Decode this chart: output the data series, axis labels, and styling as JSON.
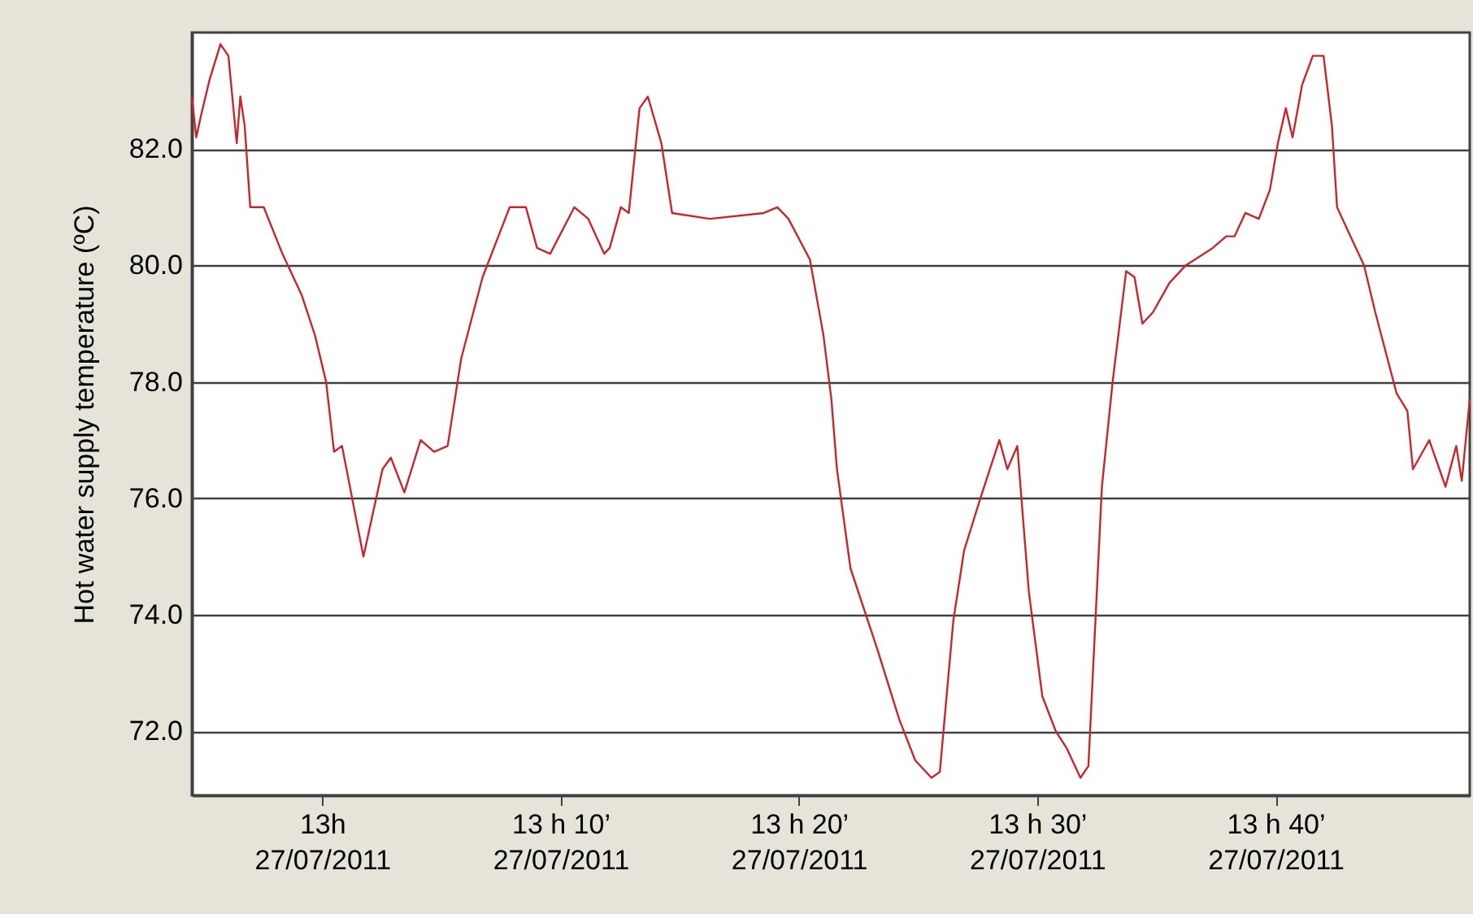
{
  "chart_data": {
    "type": "line",
    "ylabel": "Hot water supply temperature (ºC)",
    "x": [
      "2011-07-27T12:54:32",
      "2011-07-27T12:54:43",
      "2011-07-27T12:54:56",
      "2011-07-27T12:55:17",
      "2011-07-27T12:55:44",
      "2011-07-27T12:56:04",
      "2011-07-27T12:56:25",
      "2011-07-27T12:56:34",
      "2011-07-27T12:56:45",
      "2011-07-27T12:56:59",
      "2011-07-27T12:57:33",
      "2011-07-27T12:58:20",
      "2011-07-27T12:59:08",
      "2011-07-27T12:59:42",
      "2011-07-27T13:00:10",
      "2011-07-27T13:00:30",
      "2011-07-27T13:00:50",
      "2011-07-27T13:01:44",
      "2011-07-27T13:02:32",
      "2011-07-27T13:02:53",
      "2011-07-27T13:03:27",
      "2011-07-27T13:04:08",
      "2011-07-27T13:04:42",
      "2011-07-27T13:05:16",
      "2011-07-27T13:05:50",
      "2011-07-27T13:06:44",
      "2011-07-27T13:07:52",
      "2011-07-27T13:08:33",
      "2011-07-27T13:09:01",
      "2011-07-27T13:09:34",
      "2011-07-27T13:10:35",
      "2011-07-27T13:11:10",
      "2011-07-27T13:11:50",
      "2011-07-27T13:12:04",
      "2011-07-27T13:12:32",
      "2011-07-27T13:12:52",
      "2011-07-27T13:13:19",
      "2011-07-27T13:13:40",
      "2011-07-27T13:14:14",
      "2011-07-27T13:14:41",
      "2011-07-27T13:16:16",
      "2011-07-27T13:18:32",
      "2011-07-27T13:19:06",
      "2011-07-27T13:19:34",
      "2011-07-27T13:20:28",
      "2011-07-27T13:21:02",
      "2011-07-27T13:21:22",
      "2011-07-27T13:21:36",
      "2011-07-27T13:22:10",
      "2011-07-27T13:23:18",
      "2011-07-27T13:24:13",
      "2011-07-27T13:24:53",
      "2011-07-27T13:25:34",
      "2011-07-27T13:25:55",
      "2011-07-27T13:26:29",
      "2011-07-27T13:26:56",
      "2011-07-27T13:27:37",
      "2011-07-27T13:28:25",
      "2011-07-27T13:28:45",
      "2011-07-27T13:29:10",
      "2011-07-27T13:29:39",
      "2011-07-27T13:30:13",
      "2011-07-27T13:30:47",
      "2011-07-27T13:31:15",
      "2011-07-27T13:31:49",
      "2011-07-27T13:32:09",
      "2011-07-27T13:32:43",
      "2011-07-27T13:33:10",
      "2011-07-27T13:33:44",
      "2011-07-27T13:34:05",
      "2011-07-27T13:34:25",
      "2011-07-27T13:34:52",
      "2011-07-27T13:35:33",
      "2011-07-27T13:36:14",
      "2011-07-27T13:37:22",
      "2011-07-27T13:37:56",
      "2011-07-27T13:38:17",
      "2011-07-27T13:38:44",
      "2011-07-27T13:39:18",
      "2011-07-27T13:39:46",
      "2011-07-27T13:40:06",
      "2011-07-27T13:40:26",
      "2011-07-27T13:40:43",
      "2011-07-27T13:41:07",
      "2011-07-27T13:41:34",
      "2011-07-27T13:42:01",
      "2011-07-27T13:42:22",
      "2011-07-27T13:42:35",
      "2011-07-27T13:43:02",
      "2011-07-27T13:43:43",
      "2011-07-27T13:44:11",
      "2011-07-27T13:45:05",
      "2011-07-27T13:45:32",
      "2011-07-27T13:45:46",
      "2011-07-27T13:46:27",
      "2011-07-27T13:47:08",
      "2011-07-27T13:47:35",
      "2011-07-27T13:47:49",
      "2011-07-27T13:48:09"
    ],
    "values": [
      82.9,
      82.2,
      82.6,
      83.2,
      83.8,
      83.6,
      82.1,
      82.9,
      82.4,
      81.0,
      81.0,
      80.2,
      79.5,
      78.8,
      78.0,
      76.8,
      76.9,
      75.0,
      76.5,
      76.7,
      76.1,
      77.0,
      76.8,
      76.9,
      78.4,
      79.8,
      81.0,
      81.0,
      80.3,
      80.2,
      81.0,
      80.8,
      80.2,
      80.3,
      81.0,
      80.9,
      82.7,
      82.9,
      82.1,
      80.9,
      80.8,
      80.9,
      81.0,
      80.8,
      80.1,
      78.8,
      77.7,
      76.5,
      74.8,
      73.4,
      72.2,
      71.5,
      71.2,
      71.3,
      73.9,
      75.1,
      76.0,
      77.0,
      76.5,
      76.9,
      74.4,
      72.6,
      72.0,
      71.7,
      71.2,
      71.4,
      76.2,
      78.0,
      79.9,
      79.8,
      79.0,
      79.2,
      79.7,
      80.0,
      80.3,
      80.5,
      80.5,
      80.9,
      80.8,
      81.3,
      82.1,
      82.7,
      82.2,
      83.1,
      83.6,
      83.6,
      82.4,
      81.0,
      80.6,
      80.0,
      79.2,
      77.8,
      77.5,
      76.5,
      77.0,
      76.2,
      76.9,
      76.3,
      77.7
    ],
    "color": "#c8262c",
    "xlim": [
      "2011-07-27T12:54:32",
      "2011-07-27T13:48:09"
    ],
    "xticks": [
      {
        "value": "2011-07-27T13:00",
        "label": "13h\n27/07/2011"
      },
      {
        "value": "2011-07-27T13:10",
        "label": "13 h 10’\n27/07/2011"
      },
      {
        "value": "2011-07-27T13:20",
        "label": "13 h 20’\n27/07/2011"
      },
      {
        "value": "2011-07-27T13:30",
        "label": "13 h 30’\n27/07/2011"
      },
      {
        "value": "2011-07-27T13:40",
        "label": "13 h 40’\n27/07/2011"
      }
    ],
    "ylim": [
      70.9,
      84.0
    ],
    "yticks": [
      {
        "value": 72,
        "label": "72.0"
      },
      {
        "value": 74,
        "label": "74.0"
      },
      {
        "value": 76,
        "label": "76.0"
      },
      {
        "value": 78,
        "label": "78.0"
      },
      {
        "value": 80,
        "label": "80.0"
      },
      {
        "value": 82,
        "label": "82.0"
      }
    ],
    "grid": "y"
  }
}
